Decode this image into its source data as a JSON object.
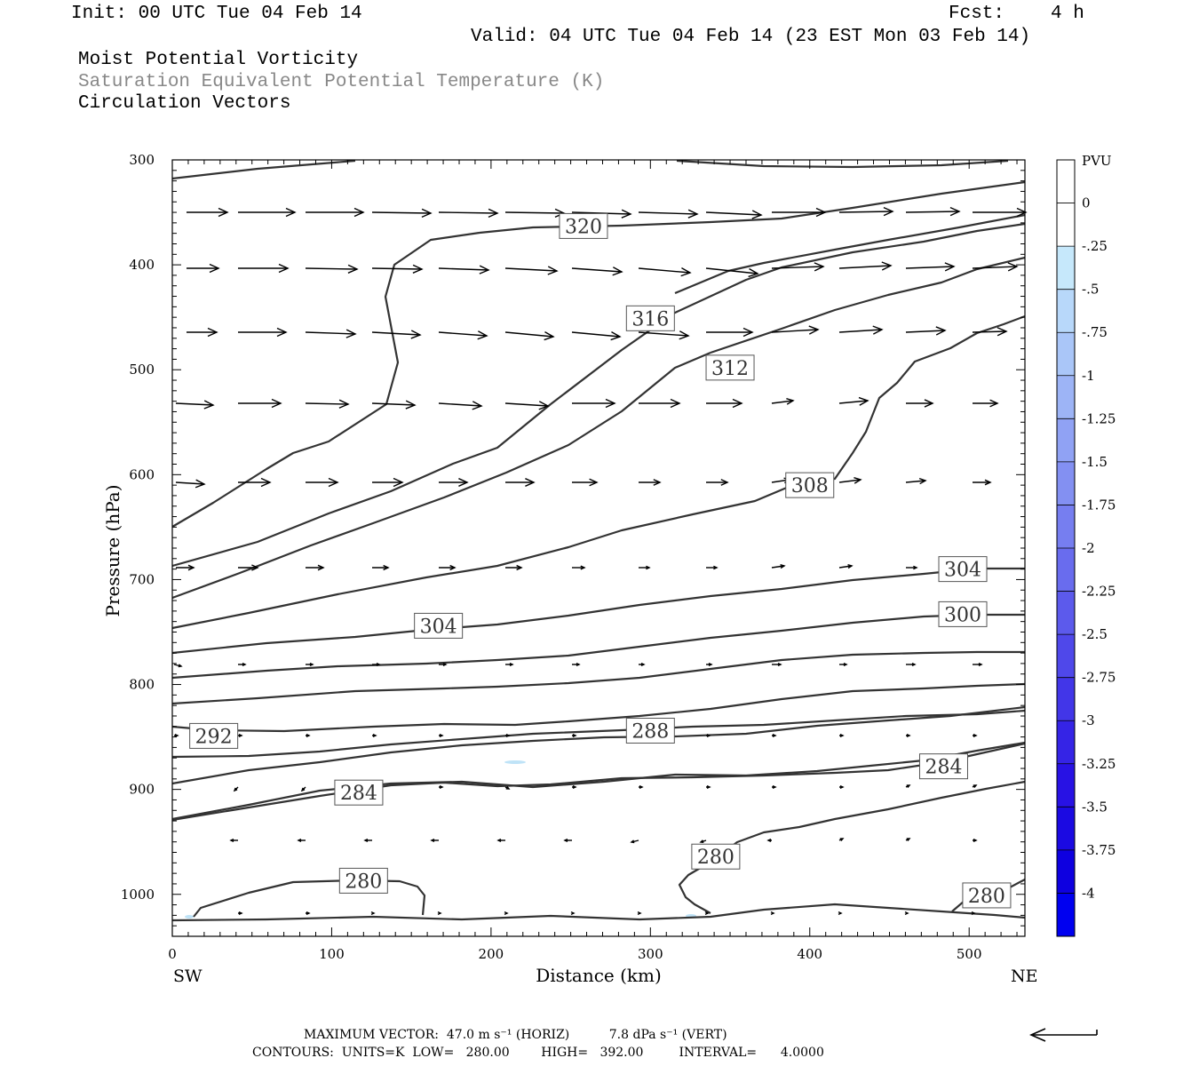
{
  "header": {
    "init": "Init: 00 UTC Tue 04 Feb 14",
    "fcst_label": "Fcst:",
    "fcst_value": "4 h",
    "valid": "Valid: 04 UTC Tue 04 Feb 14 (23 EST Mon 03 Feb 14)",
    "field1": "Moist Potential Vorticity",
    "field2": "Saturation Equivalent Potential Temperature (K)",
    "field3": "Circulation Vectors"
  },
  "axes": {
    "ylabel": "Pressure (hPa)",
    "xlabel": "Distance (km)",
    "left_end": "SW",
    "right_end": "NE"
  },
  "footer": {
    "line1": "MAXIMUM VECTOR:  47.0 m s⁻¹ (HORIZ)          7.8 dPa s⁻¹ (VERT)",
    "line2": "CONTOURS:  UNITS=K  LOW=   280.00        HIGH=   392.00         INTERVAL=      4.0000"
  },
  "colors": {
    "contour": "#333333",
    "vector": "#000000"
  },
  "chart_data": {
    "type": "cross-section",
    "x_range": [
      0,
      535
    ],
    "y_range": [
      300,
      1040
    ],
    "y_scale": "linear-inverted",
    "x_ticks": [
      0,
      100,
      200,
      300,
      400,
      500
    ],
    "y_ticks": [
      300,
      400,
      500,
      600,
      700,
      800,
      900,
      1000
    ],
    "contour_labels": [
      {
        "text": "320",
        "x": 258,
        "p": 363
      },
      {
        "text": "316",
        "x": 300,
        "p": 451
      },
      {
        "text": "312",
        "x": 350,
        "p": 498
      },
      {
        "text": "308",
        "x": 400,
        "p": 610
      },
      {
        "text": "304",
        "x": 167,
        "p": 744
      },
      {
        "text": "304",
        "x": 496,
        "p": 690
      },
      {
        "text": "300",
        "x": 496,
        "p": 733
      },
      {
        "text": "292",
        "x": 26,
        "p": 849
      },
      {
        "text": "288",
        "x": 300,
        "p": 844
      },
      {
        "text": "284",
        "x": 117,
        "p": 903
      },
      {
        "text": "284",
        "x": 484,
        "p": 878
      },
      {
        "text": "280",
        "x": 120,
        "p": 987
      },
      {
        "text": "280",
        "x": 341,
        "p": 964
      },
      {
        "text": "280",
        "x": 511,
        "p": 1001
      }
    ],
    "colorbar": {
      "title": "PVU",
      "labels": [
        "0",
        "-.25",
        "-.5",
        "-.75",
        "-1",
        "-1.25",
        "-1.5",
        "-1.75",
        "-2",
        "-2.25",
        "-2.5",
        "-2.75",
        "-3",
        "-3.25",
        "-3.5",
        "-3.75",
        "-4"
      ],
      "colors": [
        "#ffffff",
        "#ffffff",
        "#c6e8fb",
        "#b8d8fa",
        "#aac6f8",
        "#9db4f6",
        "#90a2f4",
        "#8390f2",
        "#767ef0",
        "#696cee",
        "#5c5aec",
        "#4f48ea",
        "#4236e8",
        "#3524e6",
        "#2812e4",
        "#1b0ae2",
        "#0e00e0",
        "#0000f0"
      ]
    }
  }
}
